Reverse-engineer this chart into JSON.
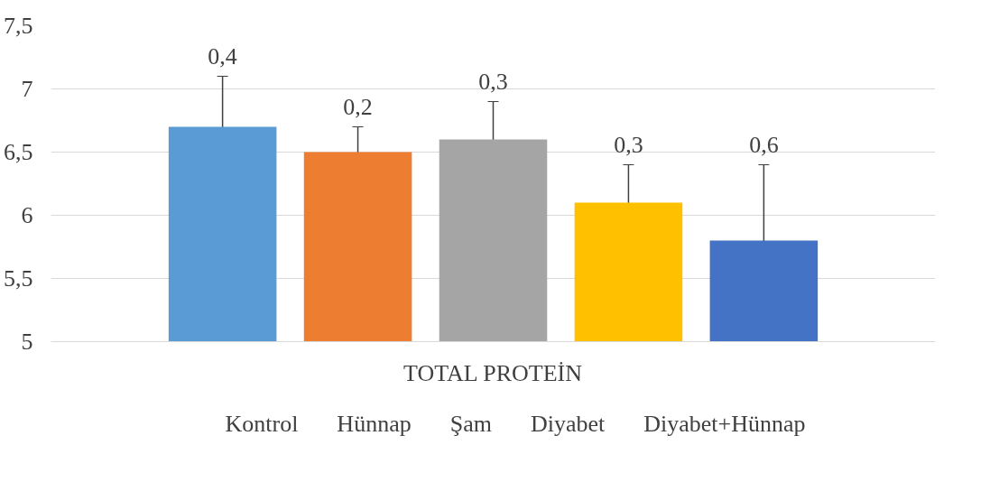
{
  "chart_data": {
    "type": "bar",
    "categories": [
      "TOTAL PROTEİN"
    ],
    "series": [
      {
        "name": "Kontrol",
        "color": "#5b9bd5",
        "values": [
          6.7
        ],
        "errors": [
          0.4
        ]
      },
      {
        "name": "Hünnap",
        "color": "#ed7d31",
        "values": [
          6.5
        ],
        "errors": [
          0.2
        ]
      },
      {
        "name": "Şam",
        "color": "#a5a5a5",
        "values": [
          6.6
        ],
        "errors": [
          0.3
        ]
      },
      {
        "name": "Diyabet",
        "color": "#ffc000",
        "values": [
          6.1
        ],
        "errors": [
          0.3
        ]
      },
      {
        "name": "Diyabet+Hünnap",
        "color": "#4472c4",
        "values": [
          5.8
        ],
        "errors": [
          0.6
        ]
      }
    ],
    "annotations": [
      "0,4",
      "0,2",
      "0,3",
      "0,3",
      "0,6"
    ],
    "ylim": [
      5,
      7.5
    ],
    "yticks": [
      5,
      {
        "value": 5.5,
        "label": "5,5"
      },
      6,
      {
        "value": 6.5,
        "label": "6,5"
      },
      7,
      {
        "value": 7.5,
        "label": "7,5"
      }
    ],
    "grid": "y",
    "legend": "bottom"
  }
}
